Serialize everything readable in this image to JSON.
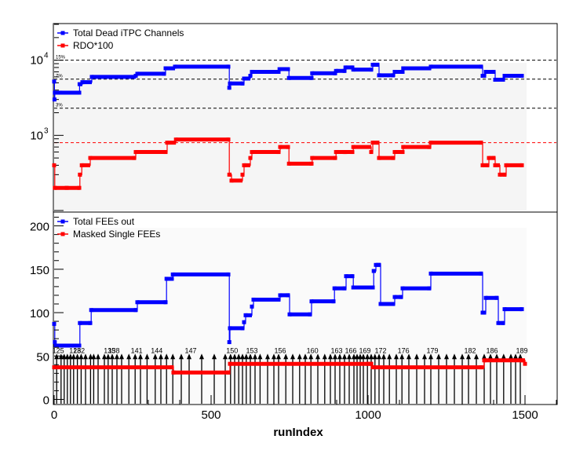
{
  "chart_data": [
    {
      "type": "line",
      "panel": "top",
      "yscale": "log",
      "xlim": [
        0,
        1600
      ],
      "ylim": [
        100,
        30000
      ],
      "yticks": [
        {
          "value": 1000,
          "label": "10",
          "exp": "3"
        },
        {
          "value": 10000,
          "label": "10",
          "exp": "4"
        }
      ],
      "legend_position": "top-left",
      "thresholds": [
        {
          "value": 10000,
          "label": "15%",
          "color": "#000000"
        },
        {
          "value": 5600,
          "label": "7%",
          "color": "#000000"
        },
        {
          "value": 2300,
          "label": "3%",
          "color": "#000000"
        },
        {
          "value": 800,
          "label": "",
          "color": "#ff0000"
        }
      ],
      "series": [
        {
          "name": "Total Dead iTPC Channels",
          "color": "#0000ff",
          "points": [
            [
              0,
              5200
            ],
            [
              1,
              3000
            ],
            [
              2,
              3700
            ],
            [
              20,
              3700
            ],
            [
              80,
              3700
            ],
            [
              81,
              4800
            ],
            [
              90,
              5100
            ],
            [
              120,
              6000
            ],
            [
              260,
              6200
            ],
            [
              265,
              6600
            ],
            [
              350,
              6600
            ],
            [
              355,
              7800
            ],
            [
              385,
              8200
            ],
            [
              555,
              8200
            ],
            [
              558,
              4300
            ],
            [
              560,
              4900
            ],
            [
              600,
              4900
            ],
            [
              605,
              5700
            ],
            [
              625,
              6200
            ],
            [
              630,
              7000
            ],
            [
              715,
              7000
            ],
            [
              718,
              7600
            ],
            [
              745,
              7600
            ],
            [
              748,
              5800
            ],
            [
              820,
              5800
            ],
            [
              822,
              6700
            ],
            [
              895,
              6700
            ],
            [
              898,
              7200
            ],
            [
              925,
              7200
            ],
            [
              928,
              8000
            ],
            [
              950,
              8000
            ],
            [
              953,
              7500
            ],
            [
              1010,
              7500
            ],
            [
              1015,
              8700
            ],
            [
              1030,
              8700
            ],
            [
              1035,
              6300
            ],
            [
              1080,
              6300
            ],
            [
              1085,
              7000
            ],
            [
              1110,
              7000
            ],
            [
              1112,
              7800
            ],
            [
              1195,
              7800
            ],
            [
              1200,
              8200
            ],
            [
              1360,
              8200
            ],
            [
              1365,
              6200
            ],
            [
              1370,
              6200
            ],
            [
              1375,
              7000
            ],
            [
              1400,
              7000
            ],
            [
              1405,
              5500
            ],
            [
              1430,
              5500
            ],
            [
              1435,
              6200
            ],
            [
              1480,
              6200
            ],
            [
              1490,
              6200
            ]
          ]
        },
        {
          "name": "RDO*100",
          "color": "#ff0000",
          "points": [
            [
              0,
              400
            ],
            [
              2,
              200
            ],
            [
              40,
              200
            ],
            [
              80,
              200
            ],
            [
              82,
              300
            ],
            [
              88,
              400
            ],
            [
              115,
              500
            ],
            [
              255,
              500
            ],
            [
              260,
              600
            ],
            [
              355,
              600
            ],
            [
              360,
              800
            ],
            [
              388,
              880
            ],
            [
              555,
              880
            ],
            [
              558,
              300
            ],
            [
              565,
              250
            ],
            [
              600,
              300
            ],
            [
              605,
              400
            ],
            [
              625,
              500
            ],
            [
              630,
              600
            ],
            [
              715,
              600
            ],
            [
              720,
              700
            ],
            [
              745,
              700
            ],
            [
              748,
              420
            ],
            [
              820,
              420
            ],
            [
              822,
              500
            ],
            [
              895,
              500
            ],
            [
              898,
              600
            ],
            [
              925,
              600
            ],
            [
              928,
              600
            ],
            [
              950,
              600
            ],
            [
              953,
              700
            ],
            [
              1010,
              600
            ],
            [
              1015,
              800
            ],
            [
              1030,
              800
            ],
            [
              1035,
              500
            ],
            [
              1080,
              500
            ],
            [
              1085,
              600
            ],
            [
              1110,
              600
            ],
            [
              1112,
              700
            ],
            [
              1195,
              700
            ],
            [
              1200,
              800
            ],
            [
              1360,
              800
            ],
            [
              1365,
              400
            ],
            [
              1380,
              400
            ],
            [
              1385,
              500
            ],
            [
              1400,
              500
            ],
            [
              1405,
              400
            ],
            [
              1420,
              300
            ],
            [
              1435,
              300
            ],
            [
              1440,
              400
            ],
            [
              1490,
              400
            ]
          ]
        }
      ]
    },
    {
      "type": "line",
      "panel": "bottom",
      "xlabel": "runIndex",
      "xlim": [
        0,
        1600
      ],
      "ylim": [
        -5,
        215
      ],
      "xticks": [
        0,
        500,
        1000,
        1500
      ],
      "yticks": [
        0,
        50,
        100,
        150,
        200
      ],
      "legend_position": "top-left",
      "series": [
        {
          "name": "Total FEEs out",
          "color": "#0000ff",
          "points": [
            [
              0,
              87
            ],
            [
              2,
              66
            ],
            [
              5,
              62
            ],
            [
              80,
              62
            ],
            [
              82,
              88
            ],
            [
              115,
              88
            ],
            [
              118,
              103
            ],
            [
              260,
              103
            ],
            [
              265,
              112
            ],
            [
              355,
              112
            ],
            [
              358,
              139
            ],
            [
              375,
              139
            ],
            [
              378,
              144
            ],
            [
              555,
              144
            ],
            [
              558,
              66
            ],
            [
              560,
              82
            ],
            [
              600,
              82
            ],
            [
              605,
              89
            ],
            [
              610,
              97
            ],
            [
              630,
              107
            ],
            [
              635,
              115
            ],
            [
              715,
              115
            ],
            [
              720,
              120
            ],
            [
              745,
              120
            ],
            [
              750,
              98
            ],
            [
              815,
              98
            ],
            [
              820,
              113
            ],
            [
              890,
              113
            ],
            [
              893,
              128
            ],
            [
              925,
              128
            ],
            [
              930,
              142
            ],
            [
              950,
              142
            ],
            [
              953,
              129
            ],
            [
              1015,
              129
            ],
            [
              1018,
              148
            ],
            [
              1025,
              155
            ],
            [
              1035,
              155
            ],
            [
              1040,
              110
            ],
            [
              1080,
              110
            ],
            [
              1085,
              118
            ],
            [
              1105,
              118
            ],
            [
              1110,
              128
            ],
            [
              1195,
              128
            ],
            [
              1200,
              145
            ],
            [
              1360,
              145
            ],
            [
              1365,
              100
            ],
            [
              1370,
              100
            ],
            [
              1375,
              117
            ],
            [
              1410,
              117
            ],
            [
              1415,
              88
            ],
            [
              1430,
              88
            ],
            [
              1435,
              104
            ],
            [
              1490,
              104
            ]
          ]
        },
        {
          "name": "Masked Single FEEs",
          "color": "#ff0000",
          "points": [
            [
              0,
              37
            ],
            [
              375,
              37
            ],
            [
              380,
              31
            ],
            [
              555,
              31
            ],
            [
              560,
              41
            ],
            [
              1500,
              41
            ],
            [
              1000,
              41
            ],
            [
              1010,
              41
            ],
            [
              1015,
              37
            ],
            [
              1360,
              37
            ],
            [
              1370,
              45
            ],
            [
              1490,
              45
            ]
          ]
        }
      ],
      "markers": [
        {
          "x": 8,
          "label": "125"
        },
        {
          "x": 22,
          "label": ""
        },
        {
          "x": 32,
          "label": ""
        },
        {
          "x": 42,
          "label": ""
        },
        {
          "x": 52,
          "label": ""
        },
        {
          "x": 62,
          "label": "128"
        },
        {
          "x": 74,
          "label": "132"
        },
        {
          "x": 86,
          "label": ""
        },
        {
          "x": 100,
          "label": ""
        },
        {
          "x": 116,
          "label": ""
        },
        {
          "x": 126,
          "label": ""
        },
        {
          "x": 140,
          "label": ""
        },
        {
          "x": 160,
          "label": ""
        },
        {
          "x": 172,
          "label": "135"
        },
        {
          "x": 185,
          "label": "138"
        },
        {
          "x": 200,
          "label": ""
        },
        {
          "x": 215,
          "label": ""
        },
        {
          "x": 238,
          "label": ""
        },
        {
          "x": 258,
          "label": "141"
        },
        {
          "x": 275,
          "label": ""
        },
        {
          "x": 296,
          "label": ""
        },
        {
          "x": 322,
          "label": "144"
        },
        {
          "x": 340,
          "label": ""
        },
        {
          "x": 358,
          "label": ""
        },
        {
          "x": 378,
          "label": ""
        },
        {
          "x": 405,
          "label": ""
        },
        {
          "x": 430,
          "label": "147"
        },
        {
          "x": 470,
          "label": ""
        },
        {
          "x": 510,
          "label": ""
        },
        {
          "x": 545,
          "label": ""
        },
        {
          "x": 562,
          "label": "150"
        },
        {
          "x": 575,
          "label": ""
        },
        {
          "x": 588,
          "label": ""
        },
        {
          "x": 600,
          "label": ""
        },
        {
          "x": 612,
          "label": ""
        },
        {
          "x": 625,
          "label": "153"
        },
        {
          "x": 640,
          "label": ""
        },
        {
          "x": 656,
          "label": ""
        },
        {
          "x": 680,
          "label": ""
        },
        {
          "x": 700,
          "label": ""
        },
        {
          "x": 715,
          "label": "156"
        },
        {
          "x": 738,
          "label": ""
        },
        {
          "x": 760,
          "label": ""
        },
        {
          "x": 782,
          "label": ""
        },
        {
          "x": 800,
          "label": ""
        },
        {
          "x": 818,
          "label": "160"
        },
        {
          "x": 840,
          "label": ""
        },
        {
          "x": 862,
          "label": ""
        },
        {
          "x": 880,
          "label": ""
        },
        {
          "x": 895,
          "label": "163"
        },
        {
          "x": 910,
          "label": ""
        },
        {
          "x": 925,
          "label": ""
        },
        {
          "x": 940,
          "label": "166"
        },
        {
          "x": 955,
          "label": ""
        },
        {
          "x": 965,
          "label": ""
        },
        {
          "x": 975,
          "label": ""
        },
        {
          "x": 985,
          "label": "169"
        },
        {
          "x": 998,
          "label": ""
        },
        {
          "x": 1010,
          "label": ""
        },
        {
          "x": 1022,
          "label": ""
        },
        {
          "x": 1035,
          "label": "172"
        },
        {
          "x": 1050,
          "label": ""
        },
        {
          "x": 1068,
          "label": ""
        },
        {
          "x": 1090,
          "label": ""
        },
        {
          "x": 1108,
          "label": "176"
        },
        {
          "x": 1130,
          "label": ""
        },
        {
          "x": 1155,
          "label": ""
        },
        {
          "x": 1180,
          "label": ""
        },
        {
          "x": 1200,
          "label": "179"
        },
        {
          "x": 1225,
          "label": ""
        },
        {
          "x": 1250,
          "label": ""
        },
        {
          "x": 1275,
          "label": ""
        },
        {
          "x": 1300,
          "label": ""
        },
        {
          "x": 1320,
          "label": "182"
        },
        {
          "x": 1345,
          "label": ""
        },
        {
          "x": 1370,
          "label": ""
        },
        {
          "x": 1390,
          "label": "186"
        },
        {
          "x": 1410,
          "label": ""
        },
        {
          "x": 1432,
          "label": ""
        },
        {
          "x": 1455,
          "label": ""
        },
        {
          "x": 1470,
          "label": ""
        },
        {
          "x": 1485,
          "label": "189"
        }
      ]
    }
  ]
}
